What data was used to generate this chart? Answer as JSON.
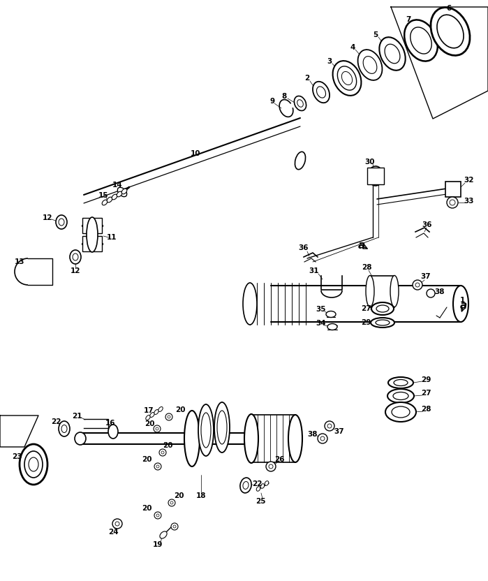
{
  "bg_color": "#ffffff",
  "line_color": "#000000",
  "fig_width": 6.99,
  "fig_height": 8.32,
  "dpi": 100
}
